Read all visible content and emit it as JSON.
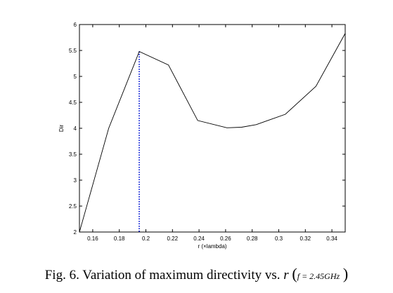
{
  "chart_data": {
    "type": "line",
    "xlabel": "r (×lambda)",
    "ylabel": "Dir",
    "xlim": [
      0.15,
      0.35
    ],
    "ylim": [
      2,
      6
    ],
    "xticks": [
      "0.16",
      "0.18",
      "0.2",
      "0.22",
      "0.24",
      "0.26",
      "0.28",
      "0.3",
      "0.32",
      "0.34"
    ],
    "yticks": [
      "2",
      "2.5",
      "3",
      "3.5",
      "4",
      "4.5",
      "5",
      "5.5",
      "6"
    ],
    "series": [
      {
        "x": [
          0.15,
          0.172,
          0.195,
          0.217,
          0.239,
          0.261,
          0.272,
          0.283,
          0.305,
          0.328,
          0.35
        ],
        "y": [
          2.0,
          4.0,
          5.48,
          5.22,
          4.15,
          4.01,
          4.02,
          4.07,
          4.27,
          4.81,
          5.83
        ],
        "color": "#000000"
      }
    ],
    "marker_line": {
      "x": 0.195,
      "y_top": 5.48,
      "color": "#1f2fd8",
      "style": "dotted"
    },
    "grid": false,
    "legend": "none"
  },
  "caption": {
    "text": "Fig. 6. Variation of maximum directivity vs.",
    "variable": "r",
    "open_paren": "(",
    "condition": "f = 2.45GHz",
    "close_paren": ")"
  }
}
